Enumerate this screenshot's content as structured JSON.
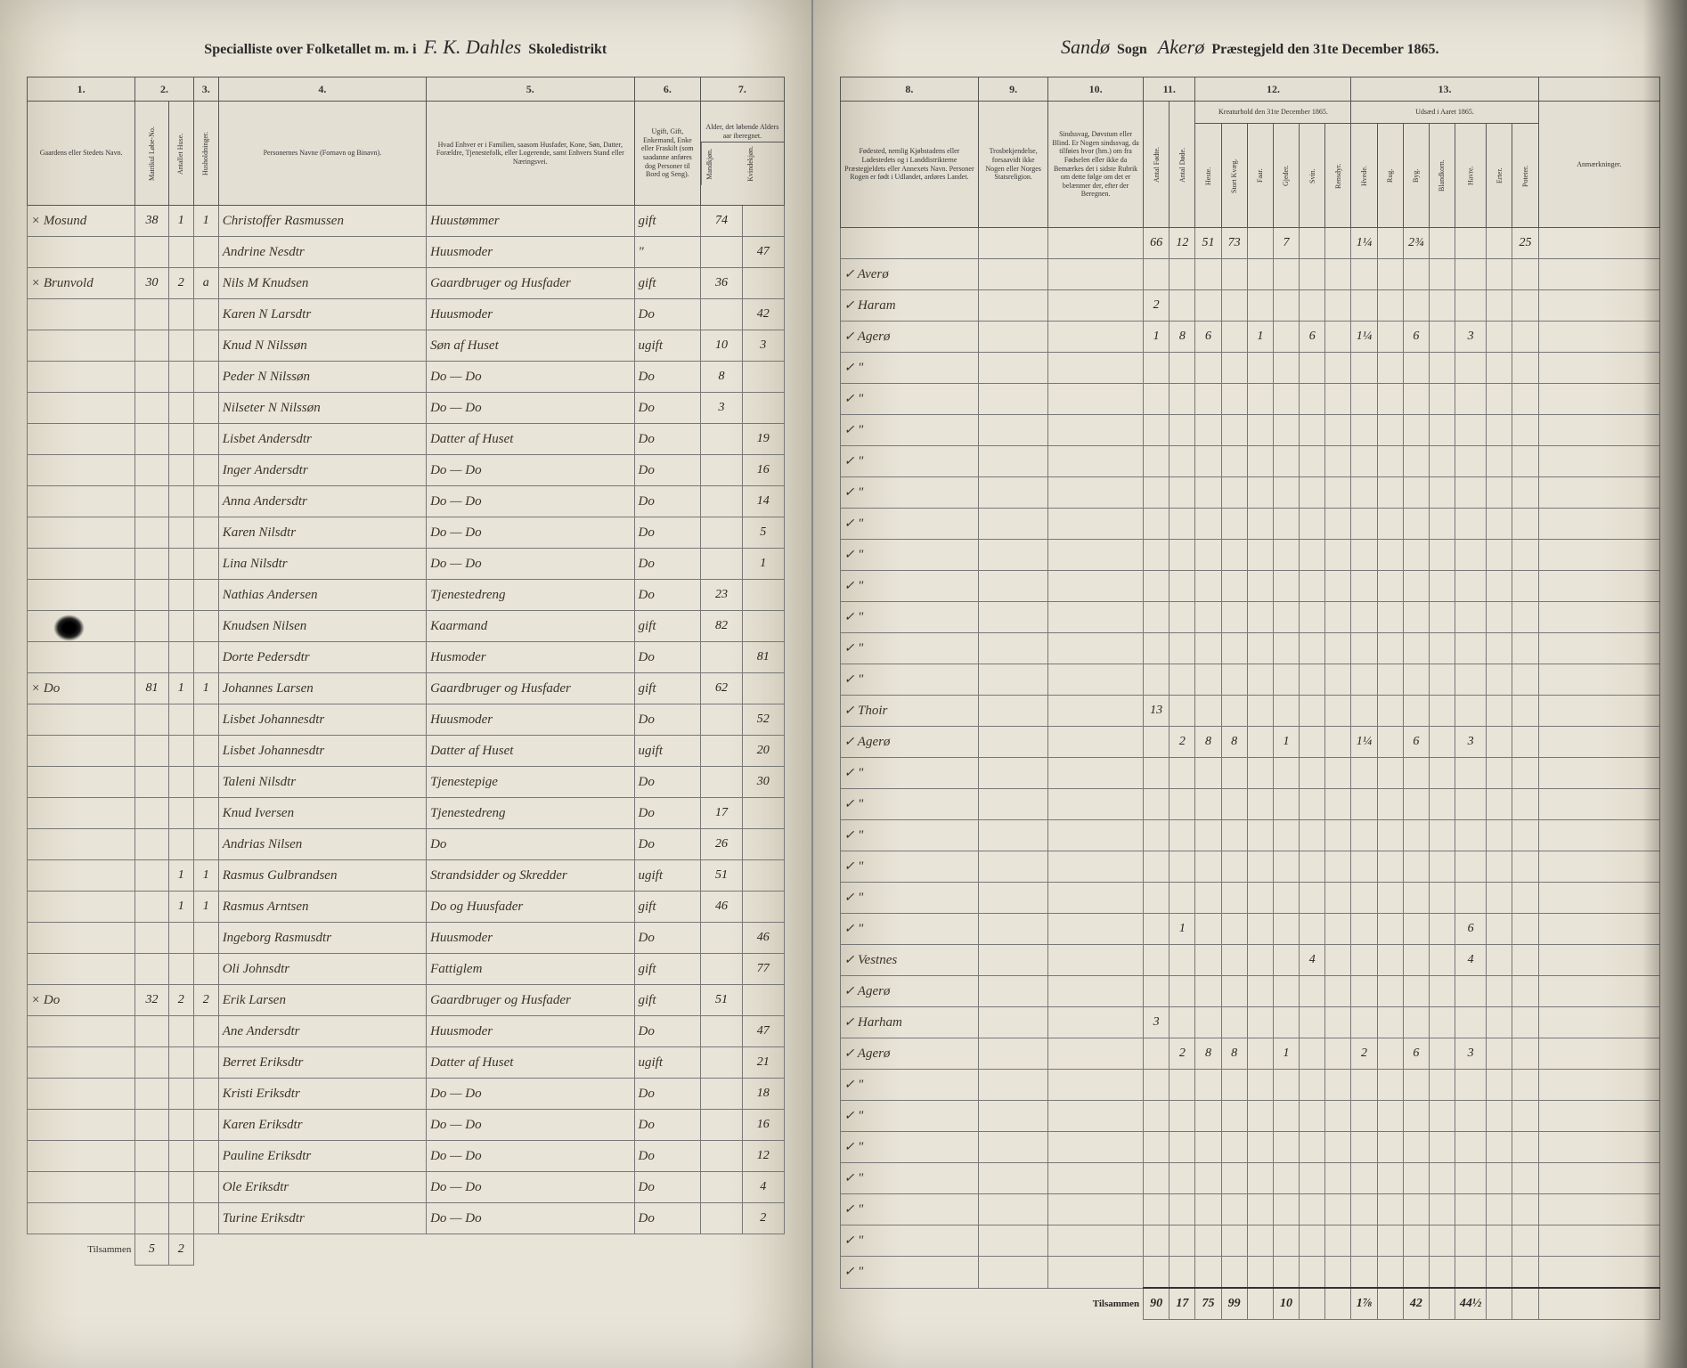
{
  "header_left": {
    "prefix": "Specialliste over Folketallet m. m. i",
    "district": "F. K. Dahles",
    "suffix": "Skoledistrikt"
  },
  "header_right": {
    "sogn_name": "Sandø",
    "sogn_label": "Sogn",
    "praest_name": "Akerø",
    "suffix": "Præstegjeld den 31te December 1865."
  },
  "left_cols": {
    "c1": "1.",
    "c2": "2.",
    "c3": "3.",
    "c4": "4.",
    "c5": "5.",
    "c6": "6.",
    "c7": "7.",
    "h1": "Gaardens eller Stedets Navn.",
    "h2a": "Matrikul Løbe-No.",
    "h2b": "Antallet Huse.",
    "h3": "Husholdninger.",
    "h4": "Personernes Navne (Fornavn og Binavn).",
    "h5": "Hvad Enhver er i Familien, saasom Husfader, Kone, Søn, Datter, Forældre, Tjenestefolk, eller Logerende, samt Enhvers Stand eller Næringsvei.",
    "h6": "Ugift, Gift, Enkemand, Enke eller Fraskilt (som saadanne anføres dog Personer til Bord og Seng).",
    "h7a": "Alder, det løbende Alders aar iberegnet.",
    "h7b": "Mandkjøn.",
    "h7c": "Kvindekjøn."
  },
  "right_cols": {
    "c8": "8.",
    "c9": "9.",
    "c10": "10.",
    "c11": "11.",
    "c12": "12.",
    "c13": "13.",
    "h8": "Fødested, nemlig Kjøbstadens eller Ladestedets og i Landdistrikterne Præstegjeldets eller Annexets Navn. Personer Rogen er født i Udlandet, anføres Landet.",
    "h9": "Trosbekjendelse, forsaavidt ikke Nogen eller Norges Statsreligion.",
    "h10": "Sindssvag, Døvstum eller Blind. Er Nogen sindssvag, da tilføies hvor (hm.) om fra Fødselen eller ikke da Bemærkes det i sidste Rubrik om dette følge om det er belænmer der, efter der Beregnen.",
    "h11a": "Antal Fødte.",
    "h11b": "Antal Døde.",
    "h12": "Kreaturhold den 31te December 1865.",
    "h12a": "Heste.",
    "h12b": "Stort Kvæg.",
    "h12c": "Faar.",
    "h12d": "Gjeder.",
    "h12e": "Svin.",
    "h12f": "Rensdyr.",
    "h13": "Udsæd i Aaret 1865.",
    "h13a": "Hvede.",
    "h13b": "Rug.",
    "h13c": "Byg.",
    "h13d": "Blandkorn.",
    "h13e": "Havre.",
    "h13f": "Erter.",
    "h13g": "Poteter.",
    "h14": "Anmærkninger."
  },
  "carry": {
    "a": "66",
    "b": "12",
    "c": "51",
    "d": "73",
    "e": "7",
    "f": "1¼",
    "g": "2¾",
    "h": "25"
  },
  "rows": [
    {
      "place": "Mosund",
      "mno": "38",
      "hus": "1",
      "hh": "1",
      "name": "Christoffer Rasmussen",
      "rel": "Huustømmer",
      "mar": "gift",
      "m": "74",
      "k": "",
      "birth": "Averø",
      "c": [
        "",
        "",
        "",
        "",
        "",
        "",
        "",
        "",
        "",
        "",
        "",
        "",
        "",
        ""
      ]
    },
    {
      "place": "",
      "mno": "",
      "hus": "",
      "hh": "",
      "name": "Andrine Nesdtr",
      "rel": "Huusmoder",
      "mar": "\"",
      "m": "",
      "k": "47",
      "birth": "Haram",
      "c": [
        "2",
        "",
        "",
        "",
        "",
        "",
        "",
        "",
        "",
        "",
        "",
        "",
        "",
        ""
      ]
    },
    {
      "place": "Brunvold",
      "mno": "30",
      "hus": "2",
      "hh": "a",
      "name": "Nils M Knudsen",
      "rel": "Gaardbruger og Husfader",
      "mar": "gift",
      "m": "36",
      "k": "",
      "birth": "Agerø",
      "c": [
        "1",
        "8",
        "6",
        "",
        "1",
        "",
        "6",
        "",
        "1¼",
        "",
        "6",
        "",
        "3",
        ""
      ]
    },
    {
      "place": "",
      "mno": "",
      "hus": "",
      "hh": "",
      "name": "Karen N Larsdtr",
      "rel": "Huusmoder",
      "mar": "Do",
      "m": "",
      "k": "42",
      "birth": "\"",
      "c": []
    },
    {
      "place": "",
      "mno": "",
      "hus": "",
      "hh": "",
      "name": "Knud N Nilssøn",
      "rel": "Søn af Huset",
      "mar": "ugift",
      "m": "10",
      "k": "3",
      "birth": "\"",
      "c": []
    },
    {
      "place": "",
      "mno": "",
      "hus": "",
      "hh": "",
      "name": "Peder N Nilssøn",
      "rel": "Do — Do",
      "mar": "Do",
      "m": "8",
      "k": "",
      "birth": "\"",
      "c": []
    },
    {
      "place": "",
      "mno": "",
      "hus": "",
      "hh": "",
      "name": "Nilseter N Nilssøn",
      "rel": "Do — Do",
      "mar": "Do",
      "m": "3",
      "k": "",
      "birth": "\"",
      "c": []
    },
    {
      "place": "",
      "mno": "",
      "hus": "",
      "hh": "",
      "name": "Lisbet Andersdtr",
      "rel": "Datter af Huset",
      "mar": "Do",
      "m": "",
      "k": "19",
      "birth": "\"",
      "c": []
    },
    {
      "place": "",
      "mno": "",
      "hus": "",
      "hh": "",
      "name": "Inger Andersdtr",
      "rel": "Do — Do",
      "mar": "Do",
      "m": "",
      "k": "16",
      "birth": "\"",
      "c": []
    },
    {
      "place": "",
      "mno": "",
      "hus": "",
      "hh": "",
      "name": "Anna Andersdtr",
      "rel": "Do — Do",
      "mar": "Do",
      "m": "",
      "k": "14",
      "birth": "\"",
      "c": []
    },
    {
      "place": "",
      "mno": "",
      "hus": "",
      "hh": "",
      "name": "Karen Nilsdtr",
      "rel": "Do — Do",
      "mar": "Do",
      "m": "",
      "k": "5",
      "birth": "\"",
      "c": []
    },
    {
      "place": "",
      "mno": "",
      "hus": "",
      "hh": "",
      "name": "Lina Nilsdtr",
      "rel": "Do — Do",
      "mar": "Do",
      "m": "",
      "k": "1",
      "birth": "\"",
      "c": []
    },
    {
      "place": "",
      "mno": "",
      "hus": "",
      "hh": "",
      "name": "Nathias Andersen",
      "rel": "Tjenestedreng",
      "mar": "Do",
      "m": "23",
      "k": "",
      "birth": "\"",
      "c": []
    },
    {
      "place": "",
      "mno": "",
      "hus": "",
      "hh": "",
      "name": "Knudsen Nilsen",
      "rel": "Kaarmand",
      "mar": "gift",
      "m": "82",
      "k": "",
      "birth": "\"",
      "c": []
    },
    {
      "place": "",
      "mno": "",
      "hus": "",
      "hh": "",
      "name": "Dorte Pedersdtr",
      "rel": "Husmoder",
      "mar": "Do",
      "m": "",
      "k": "81",
      "birth": "Thoir",
      "c": [
        "13",
        "",
        "",
        "",
        "",
        "",
        "",
        "",
        "",
        "",
        "",
        "",
        "",
        ""
      ]
    },
    {
      "place": "Do",
      "mno": "81",
      "hus": "1",
      "hh": "1",
      "name": "Johannes Larsen",
      "rel": "Gaardbruger og Husfader",
      "mar": "gift",
      "m": "62",
      "k": "",
      "birth": "Agerø",
      "c": [
        "",
        "2",
        "8",
        "8",
        "",
        "1",
        "",
        "",
        "1¼",
        "",
        "6",
        "",
        "3",
        ""
      ]
    },
    {
      "place": "",
      "mno": "",
      "hus": "",
      "hh": "",
      "name": "Lisbet Johannesdtr",
      "rel": "Huusmoder",
      "mar": "Do",
      "m": "",
      "k": "52",
      "birth": "\"",
      "c": []
    },
    {
      "place": "",
      "mno": "",
      "hus": "",
      "hh": "",
      "name": "Lisbet Johannesdtr",
      "rel": "Datter af Huset",
      "mar": "ugift",
      "m": "",
      "k": "20",
      "birth": "\"",
      "c": []
    },
    {
      "place": "",
      "mno": "",
      "hus": "",
      "hh": "",
      "name": "Taleni Nilsdtr",
      "rel": "Tjenestepige",
      "mar": "Do",
      "m": "",
      "k": "30",
      "birth": "\"",
      "c": []
    },
    {
      "place": "",
      "mno": "",
      "hus": "",
      "hh": "",
      "name": "Knud Iversen",
      "rel": "Tjenestedreng",
      "mar": "Do",
      "m": "17",
      "k": "",
      "birth": "\"",
      "c": []
    },
    {
      "place": "",
      "mno": "",
      "hus": "",
      "hh": "",
      "name": "Andrias Nilsen",
      "rel": "Do",
      "mar": "Do",
      "m": "26",
      "k": "",
      "birth": "\"",
      "c": []
    },
    {
      "place": "",
      "mno": "",
      "hus": "1",
      "hh": "1",
      "name": "Rasmus Gulbrandsen",
      "rel": "Strandsidder og Skredder",
      "mar": "ugift",
      "m": "51",
      "k": "",
      "birth": "\"",
      "c": [
        "",
        "1",
        "",
        "",
        "",
        "",
        "",
        "",
        "",
        "",
        "",
        "",
        "6",
        ""
      ]
    },
    {
      "place": "",
      "mno": "",
      "hus": "1",
      "hh": "1",
      "name": "Rasmus Arntsen",
      "rel": "Do og Huusfader",
      "mar": "gift",
      "m": "46",
      "k": "",
      "birth": "Vestnes",
      "c": [
        "",
        "",
        "",
        "",
        "",
        "",
        "4",
        "",
        "",
        "",
        "",
        "",
        "4",
        ""
      ]
    },
    {
      "place": "",
      "mno": "",
      "hus": "",
      "hh": "",
      "name": "Ingeborg Rasmusdtr",
      "rel": "Huusmoder",
      "mar": "Do",
      "m": "",
      "k": "46",
      "birth": "Agerø",
      "c": []
    },
    {
      "place": "",
      "mno": "",
      "hus": "",
      "hh": "",
      "name": "Oli Johnsdtr",
      "rel": "Fattiglem",
      "mar": "gift",
      "m": "",
      "k": "77",
      "birth": "Harham",
      "c": [
        "3",
        "",
        "",
        "",
        "",
        "",
        "",
        "",
        "",
        "",
        "",
        "",
        "",
        ""
      ]
    },
    {
      "place": "Do",
      "mno": "32",
      "hus": "2",
      "hh": "2",
      "name": "Erik Larsen",
      "rel": "Gaardbruger og Husfader",
      "mar": "gift",
      "m": "51",
      "k": "",
      "birth": "Agerø",
      "c": [
        "",
        "2",
        "8",
        "8",
        "",
        "1",
        "",
        "",
        "2",
        "",
        "6",
        "",
        "3",
        ""
      ]
    },
    {
      "place": "",
      "mno": "",
      "hus": "",
      "hh": "",
      "name": "Ane Andersdtr",
      "rel": "Huusmoder",
      "mar": "Do",
      "m": "",
      "k": "47",
      "birth": "\"",
      "c": []
    },
    {
      "place": "",
      "mno": "",
      "hus": "",
      "hh": "",
      "name": "Berret Eriksdtr",
      "rel": "Datter af Huset",
      "mar": "ugift",
      "m": "",
      "k": "21",
      "birth": "\"",
      "c": []
    },
    {
      "place": "",
      "mno": "",
      "hus": "",
      "hh": "",
      "name": "Kristi Eriksdtr",
      "rel": "Do — Do",
      "mar": "Do",
      "m": "",
      "k": "18",
      "birth": "\"",
      "c": []
    },
    {
      "place": "",
      "mno": "",
      "hus": "",
      "hh": "",
      "name": "Karen Eriksdtr",
      "rel": "Do — Do",
      "mar": "Do",
      "m": "",
      "k": "16",
      "birth": "\"",
      "c": []
    },
    {
      "place": "",
      "mno": "",
      "hus": "",
      "hh": "",
      "name": "Pauline Eriksdtr",
      "rel": "Do — Do",
      "mar": "Do",
      "m": "",
      "k": "12",
      "birth": "\"",
      "c": []
    },
    {
      "place": "",
      "mno": "",
      "hus": "",
      "hh": "",
      "name": "Ole Eriksdtr",
      "rel": "Do — Do",
      "mar": "Do",
      "m": "",
      "k": "4",
      "birth": "\"",
      "c": []
    },
    {
      "place": "",
      "mno": "",
      "hus": "",
      "hh": "",
      "name": "Turine Eriksdtr",
      "rel": "Do — Do",
      "mar": "Do",
      "m": "",
      "k": "2",
      "birth": "\"",
      "c": []
    }
  ],
  "footer_left": {
    "label": "Tilsammen",
    "a": "5",
    "b": "2"
  },
  "footer_right": {
    "label": "Tilsammen",
    "v": [
      "90",
      "17",
      "75",
      "99",
      "",
      "10",
      "",
      "",
      "1⅞",
      "",
      "42",
      "",
      "44½"
    ]
  }
}
